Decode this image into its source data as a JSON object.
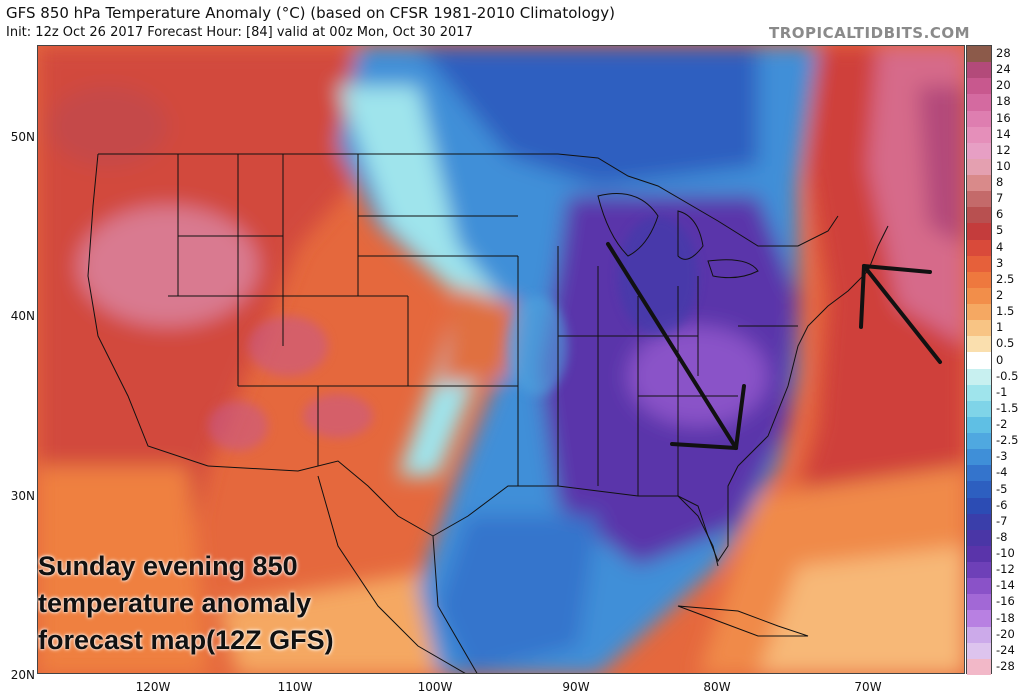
{
  "header": {
    "title": "GFS 850 hPa Temperature Anomaly (°C) (based on CFSR 1981-2010 Climatology)",
    "subtitle": "Init: 12z Oct 26 2017   Forecast Hour: [84]   valid at 00z Mon, Oct 30 2017",
    "watermark": "TROPICALTIDBITS.COM"
  },
  "map": {
    "lat_labels": [
      "50N",
      "40N",
      "30N",
      "20N"
    ],
    "lon_labels": [
      "120W",
      "110W",
      "100W",
      "90W",
      "80W",
      "70W"
    ],
    "annotation_color": "#111111",
    "arrows": [
      {
        "name": "arrow-southeast",
        "description_from": "Great Lakes",
        "description_to": "Carolinas"
      },
      {
        "name": "arrow-northwest",
        "description_from": "Atlantic",
        "description_to": "New England"
      }
    ]
  },
  "caption": {
    "line1": "Sunday evening 850",
    "line2": "temperature anomaly",
    "line3": "forecast map(12Z GFS)"
  },
  "colorbar": {
    "labels": [
      "28",
      "24",
      "20",
      "18",
      "16",
      "14",
      "12",
      "10",
      "8",
      "7",
      "6",
      "5",
      "4",
      "3",
      "2.5",
      "2",
      "1.5",
      "1",
      "0.5",
      "0",
      "-0.5",
      "-1",
      "-1.5",
      "-2",
      "-2.5",
      "-3",
      "-4",
      "-5",
      "-6",
      "-7",
      "-8",
      "-10",
      "-12",
      "-14",
      "-16",
      "-18",
      "-20",
      "-24",
      "-28"
    ],
    "colors": [
      "#8c5a4a",
      "#b34a7a",
      "#c8588e",
      "#d46aa0",
      "#de7eb0",
      "#e58fba",
      "#e79fc4",
      "#e4a0b0",
      "#d98a8a",
      "#c46a6a",
      "#b85050",
      "#c43c3c",
      "#d94a3a",
      "#e6603a",
      "#ee783e",
      "#f28e4a",
      "#f5a862",
      "#f8c484",
      "#fadfae",
      "#ffffff",
      "#c8f0f0",
      "#9fe4ec",
      "#7fd4e8",
      "#5fbfe4",
      "#4fa8e0",
      "#3f8fd8",
      "#3474cc",
      "#2d5fc0",
      "#2c4cb4",
      "#3a3eaa",
      "#4a36a6",
      "#5a34aa",
      "#6e40b8",
      "#8a52c8",
      "#a268d6",
      "#b880e2",
      "#ccaaea",
      "#ddc4ee",
      "#f2b8c8"
    ]
  }
}
